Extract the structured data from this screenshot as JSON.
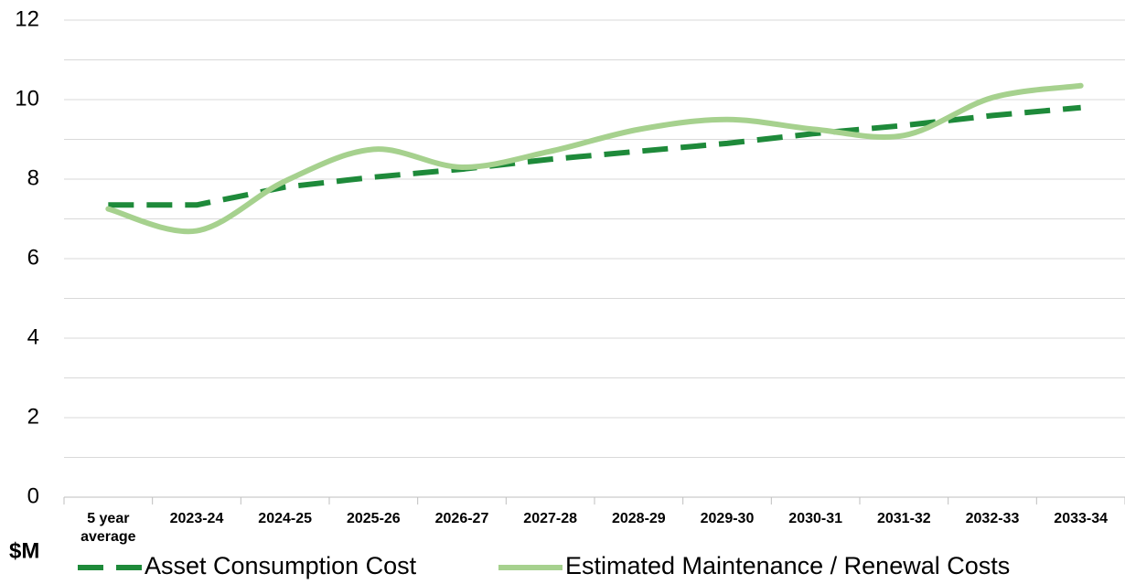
{
  "chart_data": {
    "type": "line",
    "y_label": "$M",
    "categories": [
      "5 year average",
      "2023-24",
      "2024-25",
      "2025-26",
      "2026-27",
      "2027-28",
      "2028-29",
      "2029-30",
      "2030-31",
      "2031-32",
      "2032-33",
      "2033-34"
    ],
    "series": [
      {
        "name": "Asset Consumption Cost",
        "color": "#1e8a3a",
        "style": "dashed",
        "values": [
          7.35,
          7.35,
          7.8,
          8.05,
          8.25,
          8.5,
          8.7,
          8.9,
          9.15,
          9.35,
          9.6,
          9.8
        ]
      },
      {
        "name": "Estimated Maintenance / Renewal Costs",
        "color": "#a6d18e",
        "style": "smooth",
        "values": [
          7.25,
          6.7,
          7.95,
          8.75,
          8.3,
          8.7,
          9.25,
          9.5,
          9.25,
          9.1,
          10.05,
          10.35
        ]
      }
    ],
    "ylim": [
      0,
      12
    ],
    "yticks": [
      0,
      2,
      4,
      6,
      8,
      10,
      12
    ],
    "yminorticks": [
      1,
      3,
      5,
      7,
      9,
      11
    ],
    "grid": true,
    "legend": "bottom"
  }
}
